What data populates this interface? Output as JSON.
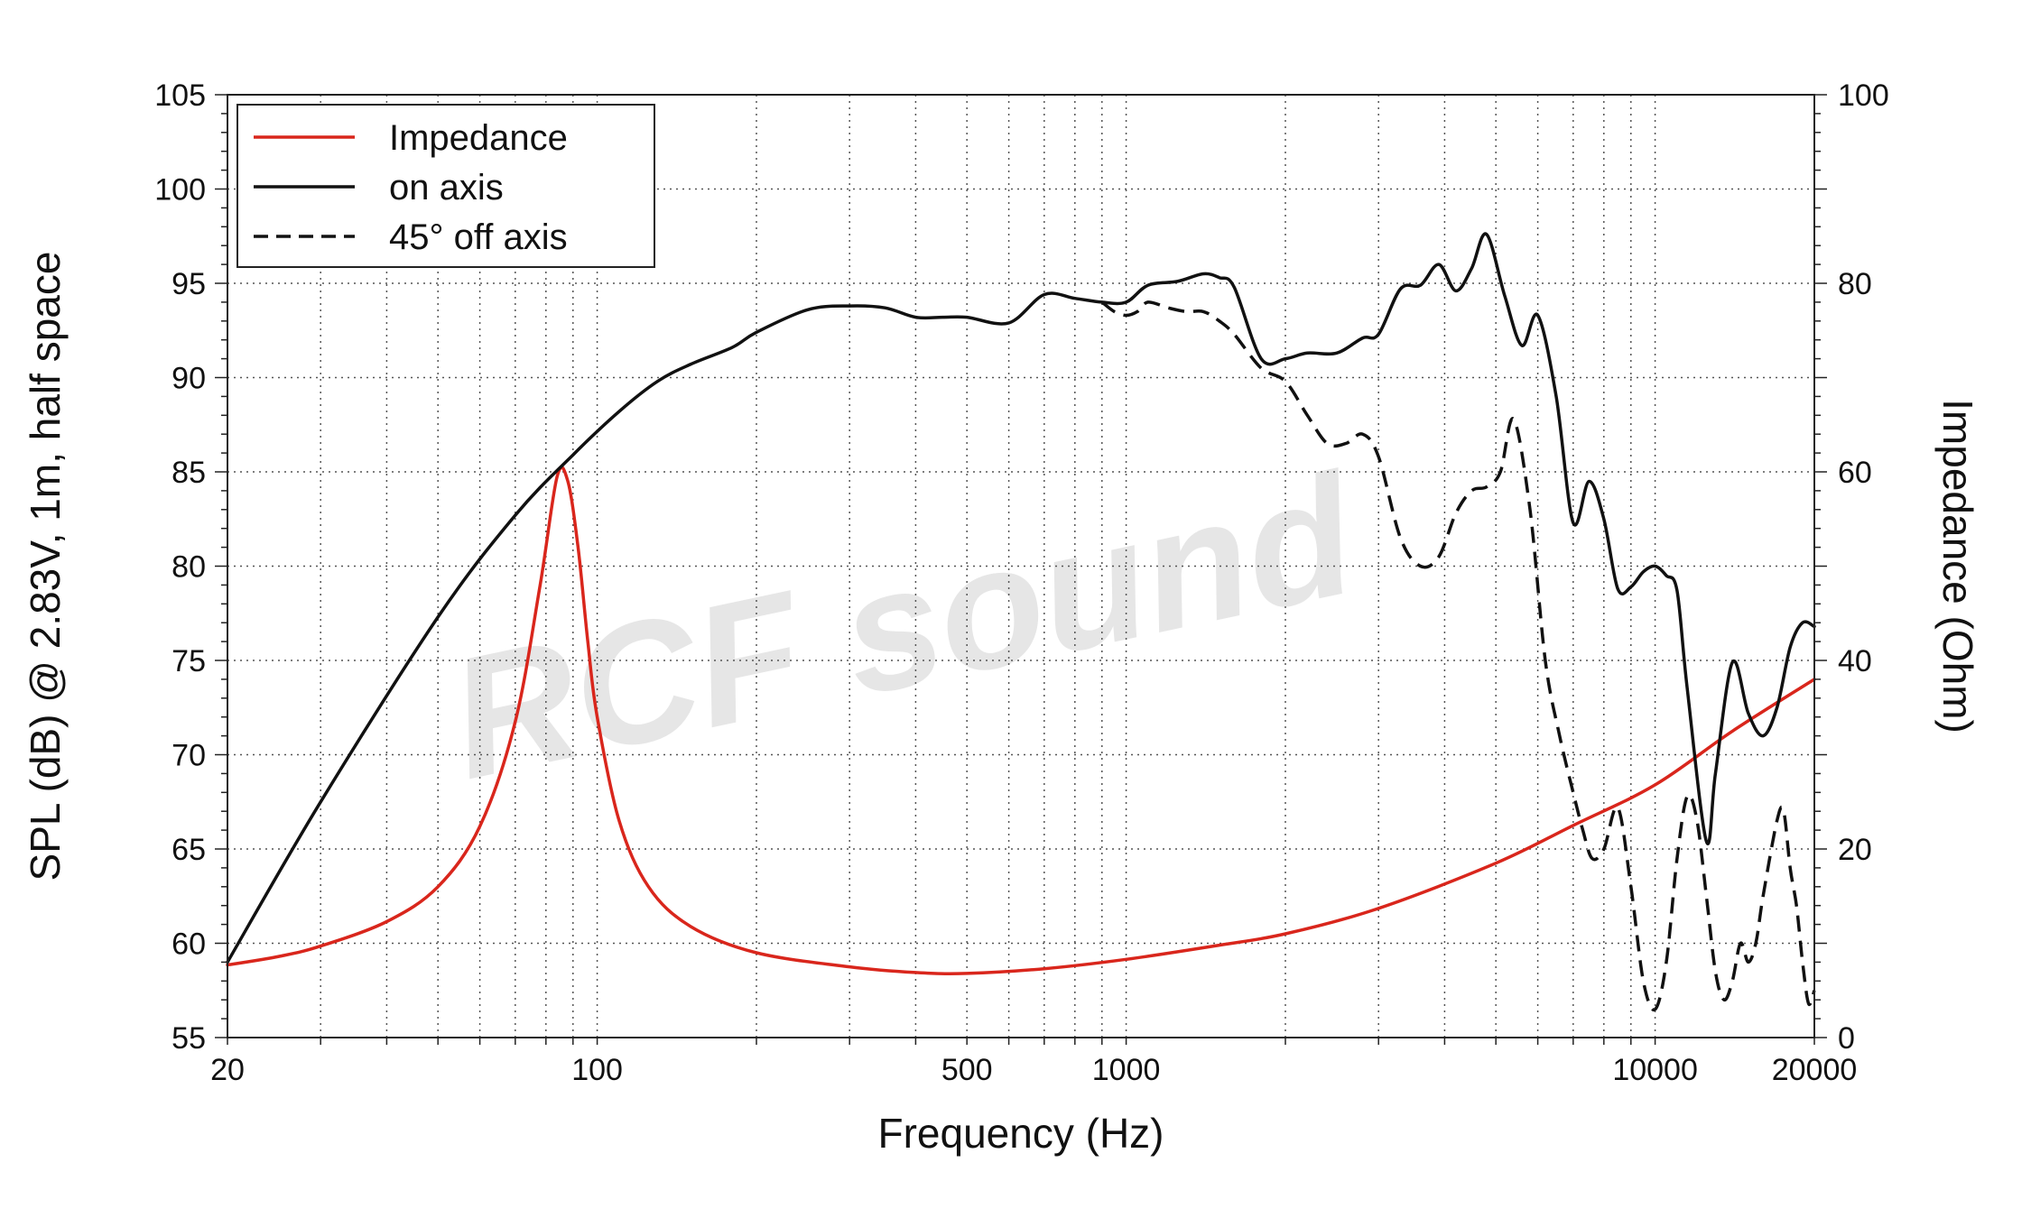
{
  "chart_data": {
    "type": "line",
    "title": "",
    "xlabel": "Frequency (Hz)",
    "ylabel_left": "SPL (dB) @ 2.83V, 1m, half space",
    "ylabel_right": "Impedance (Ohm)",
    "x_scale": "log",
    "xlim": [
      20,
      20000
    ],
    "ylim_left": [
      55,
      105
    ],
    "ylim_right": [
      0,
      100
    ],
    "x_ticks": [
      20,
      100,
      500,
      1000,
      10000,
      20000
    ],
    "x_tick_labels": [
      "20",
      "100",
      "500",
      "1000",
      "10000",
      "20000"
    ],
    "y_left_ticks": [
      55,
      60,
      65,
      70,
      75,
      80,
      85,
      90,
      95,
      100,
      105
    ],
    "y_left_tick_labels": [
      "55",
      "60",
      "65",
      "70",
      "75",
      "80",
      "85",
      "90",
      "95",
      "100",
      "105"
    ],
    "y_right_ticks": [
      0,
      20,
      40,
      60,
      80,
      100
    ],
    "y_right_tick_labels": [
      "0",
      "20",
      "40",
      "60",
      "80",
      "100"
    ],
    "grid": true,
    "legend_position": "top-left",
    "watermark": "RCF sound",
    "series": [
      {
        "name": "Impedance",
        "axis": "right",
        "color": "#d9261c",
        "dash": "solid",
        "x": [
          20,
          25,
          30,
          40,
          50,
          60,
          70,
          78,
          84,
          88,
          92,
          96,
          100,
          110,
          125,
          150,
          200,
          300,
          400,
          500,
          700,
          1000,
          1500,
          2000,
          3000,
          5000,
          7000,
          10000,
          14000,
          20000
        ],
        "y": [
          7.7,
          8.6,
          9.7,
          12.3,
          16.0,
          22.4,
          33.5,
          48.0,
          59.5,
          59.0,
          52.0,
          42.0,
          34.0,
          23.0,
          16.0,
          11.8,
          9.0,
          7.5,
          6.9,
          6.8,
          7.3,
          8.3,
          9.8,
          11.0,
          13.7,
          18.5,
          22.5,
          26.8,
          32.5,
          38.0
        ]
      },
      {
        "name": "on axis",
        "axis": "left",
        "color": "#111111",
        "dash": "solid",
        "x": [
          20,
          30,
          50,
          70,
          90,
          110,
          130,
          150,
          180,
          200,
          250,
          300,
          350,
          400,
          450,
          500,
          600,
          700,
          800,
          900,
          1000,
          1100,
          1250,
          1400,
          1500,
          1600,
          1800,
          2000,
          2200,
          2500,
          2800,
          3000,
          3300,
          3600,
          3900,
          4200,
          4500,
          4800,
          5200,
          5600,
          6000,
          6500,
          7000,
          7500,
          8000,
          8500,
          9000,
          9500,
          10000,
          10500,
          11000,
          11500,
          12500,
          13000,
          14000,
          15000,
          16000,
          17000,
          18000,
          19000,
          20000
        ],
        "y": [
          59.0,
          67.5,
          77.3,
          82.7,
          85.9,
          88.2,
          89.8,
          90.7,
          91.6,
          92.4,
          93.6,
          93.8,
          93.7,
          93.2,
          93.2,
          93.2,
          92.9,
          94.4,
          94.2,
          94.0,
          94.0,
          94.9,
          95.1,
          95.5,
          95.3,
          94.8,
          91.0,
          91.0,
          91.3,
          91.3,
          92.1,
          92.3,
          94.7,
          94.9,
          96.0,
          94.6,
          95.8,
          97.6,
          94.3,
          91.7,
          93.3,
          89.0,
          82.3,
          84.5,
          82.5,
          78.8,
          78.9,
          79.7,
          80.0,
          79.5,
          78.7,
          73.5,
          65.4,
          69.0,
          74.9,
          72.2,
          71.0,
          72.5,
          75.7,
          77.0,
          76.8
        ]
      },
      {
        "name": "45° off axis",
        "axis": "left",
        "color": "#111111",
        "dash": "dashed",
        "x": [
          900,
          950,
          1000,
          1050,
          1100,
          1200,
          1300,
          1400,
          1500,
          1600,
          1800,
          2000,
          2200,
          2400,
          2600,
          2800,
          3000,
          3300,
          3600,
          3900,
          4200,
          4500,
          4800,
          5100,
          5400,
          5800,
          6200,
          6600,
          7000,
          7300,
          7600,
          8000,
          8500,
          9000,
          9500,
          10000,
          10500,
          11000,
          11500,
          12000,
          12500,
          13000,
          13500,
          14000,
          14500,
          15000,
          15500,
          16000,
          17000,
          17500,
          18000,
          18500,
          19000,
          19500,
          20000
        ],
        "y": [
          94.0,
          93.5,
          93.3,
          93.5,
          94.0,
          93.7,
          93.5,
          93.5,
          93.0,
          92.3,
          90.5,
          89.8,
          88.0,
          86.5,
          86.5,
          87.0,
          85.8,
          81.5,
          80.0,
          80.5,
          82.8,
          84.0,
          84.2,
          85.0,
          87.8,
          83.0,
          75.0,
          71.0,
          68.0,
          66.0,
          64.5,
          65.0,
          67.2,
          63.0,
          58.0,
          56.5,
          59.0,
          64.5,
          67.8,
          66.5,
          62.5,
          58.5,
          57.0,
          58.0,
          60.0,
          59.0,
          60.0,
          62.5,
          66.5,
          67.0,
          64.0,
          62.0,
          59.0,
          56.8,
          57.5
        ]
      }
    ]
  }
}
